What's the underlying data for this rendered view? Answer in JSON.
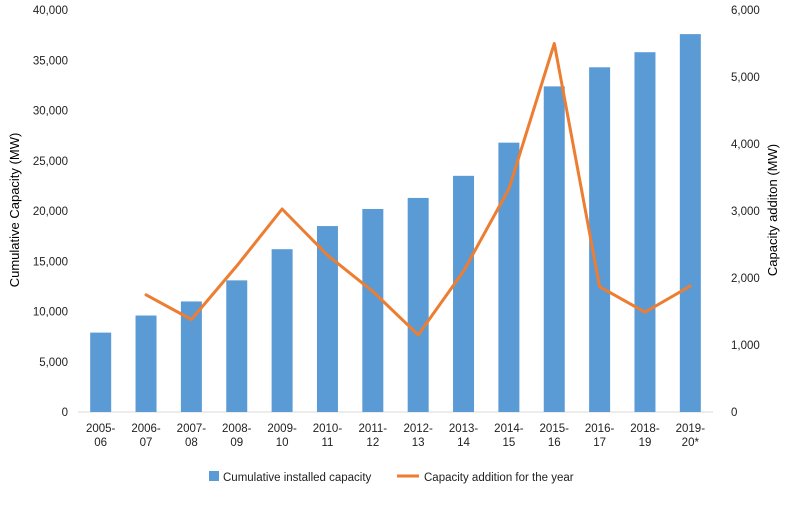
{
  "chart_data": {
    "type": "bar",
    "categories": [
      [
        "2005-",
        "06"
      ],
      [
        "2006-",
        "07"
      ],
      [
        "2007-",
        "08"
      ],
      [
        "2008-",
        "09"
      ],
      [
        "2009-",
        "10"
      ],
      [
        "2010-",
        "11"
      ],
      [
        "2011-",
        "12"
      ],
      [
        "2012-",
        "13"
      ],
      [
        "2013-",
        "14"
      ],
      [
        "2014-",
        "15"
      ],
      [
        "2015-",
        "16"
      ],
      [
        "2016-",
        "17"
      ],
      [
        "2018-",
        "19"
      ],
      [
        "2019-",
        "20*"
      ]
    ],
    "series": [
      {
        "name": "Cumulative installed capacity",
        "type": "bar",
        "axis": "left",
        "color": "#5b9bd5",
        "values": [
          7900,
          9600,
          11000,
          13100,
          16200,
          18500,
          20200,
          21300,
          23500,
          26800,
          32400,
          34300,
          35800,
          37600
        ]
      },
      {
        "name": "Capacity addition for the year",
        "type": "line",
        "axis": "right",
        "color": "#ed7d31",
        "values": [
          null,
          1750,
          1380,
          2180,
          3030,
          2340,
          1800,
          1150,
          2100,
          3330,
          5500,
          1870,
          1490,
          1880
        ]
      }
    ],
    "ylabel": "Cumulative Capacity (MW)",
    "y2label": "Capacity additon (MW)",
    "ylim": [
      0,
      40000
    ],
    "y2lim": [
      0,
      6000
    ],
    "yticks": [
      "0",
      "5,000",
      "10,000",
      "15,000",
      "20,000",
      "25,000",
      "30,000",
      "35,000",
      "40,000"
    ],
    "y2ticks": [
      "0",
      "1,000",
      "2,000",
      "3,000",
      "4,000",
      "5,000",
      "6,000"
    ],
    "grid": false,
    "legend_position": "bottom"
  }
}
